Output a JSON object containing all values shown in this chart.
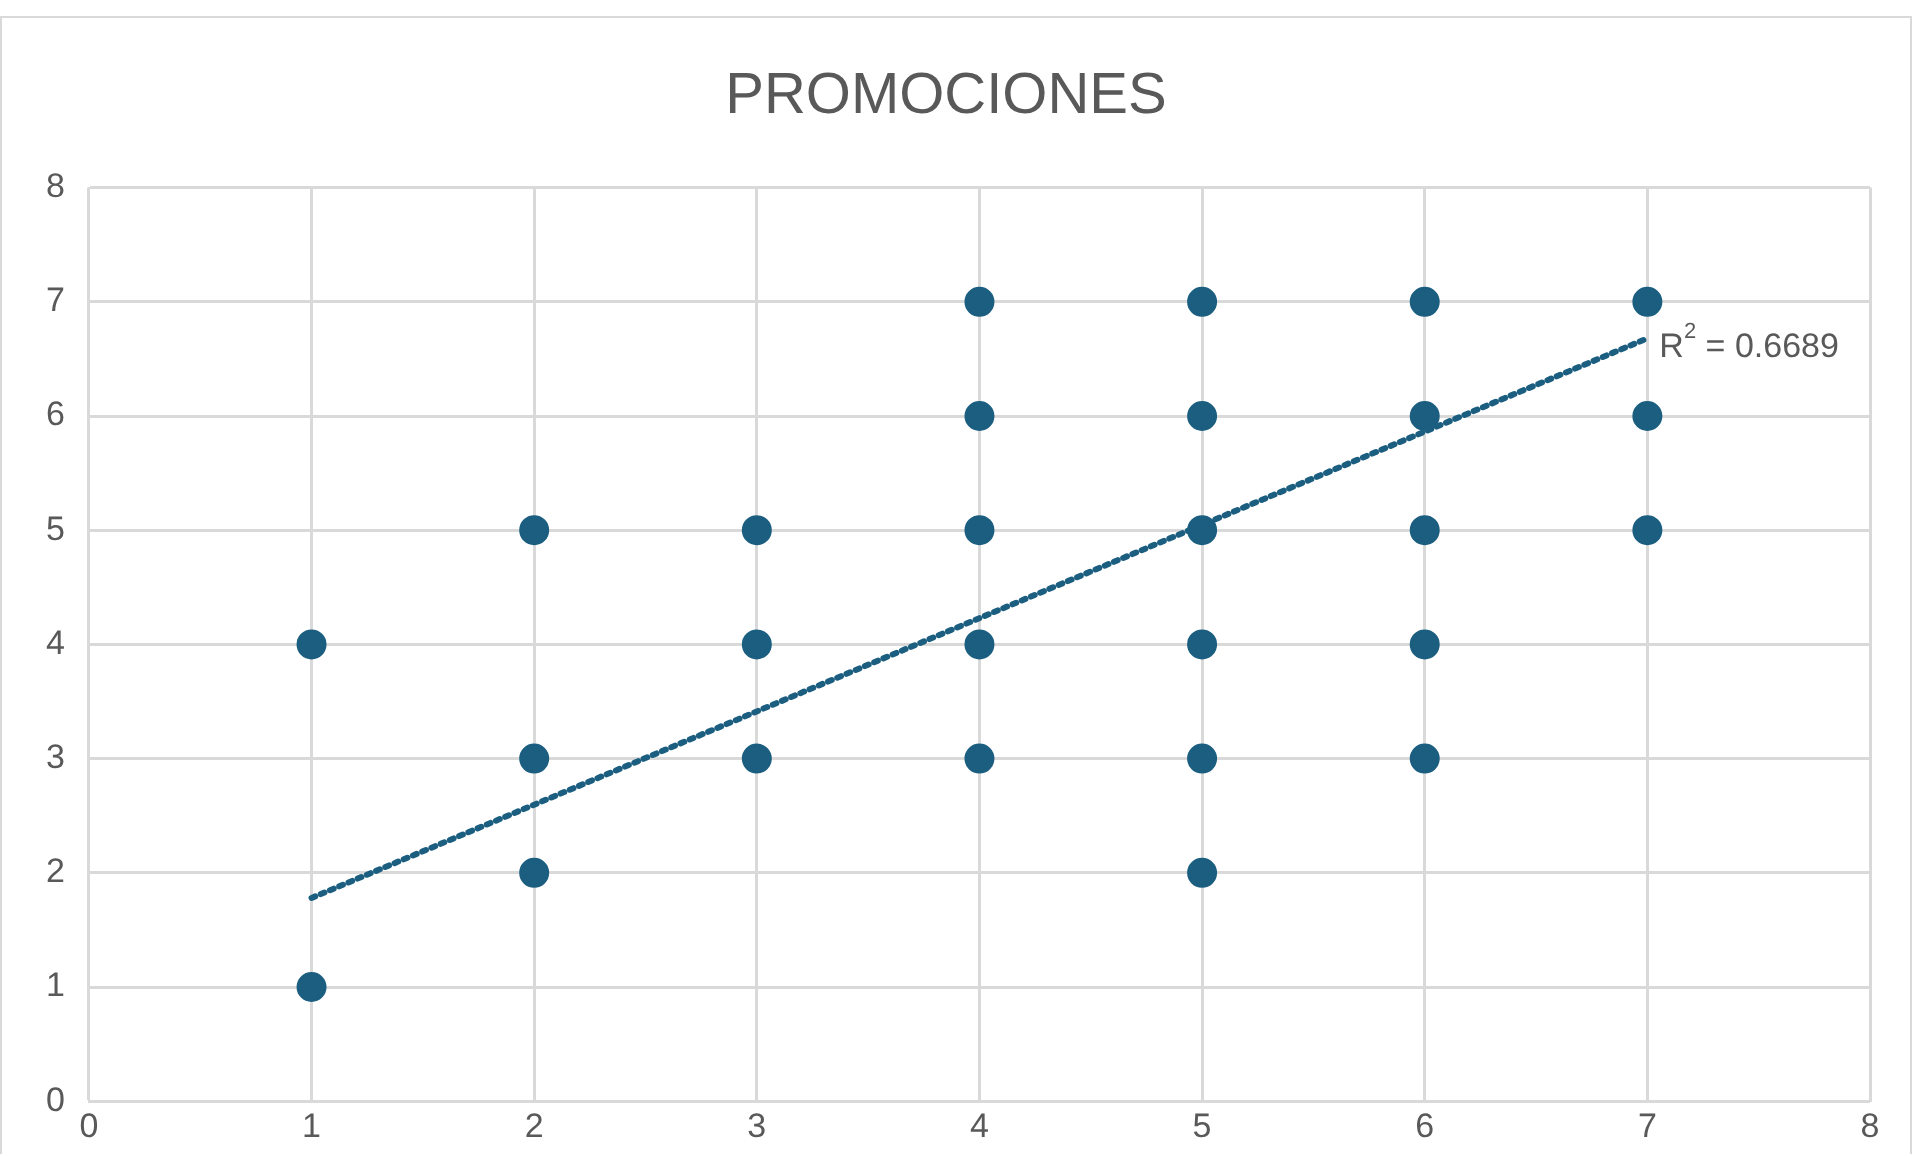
{
  "chart_data": {
    "type": "scatter",
    "title": "PROMOCIONES",
    "x": [
      1,
      1,
      2,
      2,
      2,
      3,
      3,
      3,
      4,
      4,
      4,
      4,
      4,
      5,
      5,
      5,
      5,
      5,
      5,
      6,
      6,
      6,
      6,
      6,
      7,
      7,
      7
    ],
    "series": [
      {
        "color": "#1b5e80",
        "marker": "circle",
        "values": [
          4,
          1,
          5,
          3,
          2,
          5,
          4,
          3,
          7,
          6,
          5,
          4,
          3,
          7,
          6,
          5,
          4,
          3,
          2,
          7,
          6,
          5,
          4,
          3,
          7,
          6,
          5
        ]
      },
      {
        "type": "line",
        "color": "#1b5e80",
        "line_style": "dotted",
        "marker": "none",
        "x": [
          1,
          7
        ],
        "values": [
          1.78,
          6.68
        ]
      }
    ],
    "annotations": [
      {
        "text": "R$^{2}$ = 0.6689",
        "x": 7,
        "y": 6.6
      }
    ],
    "xlim": [
      0,
      8
    ],
    "xticks": [
      0,
      1,
      2,
      3,
      4,
      5,
      6,
      7,
      8
    ],
    "ylim": [
      0,
      8
    ],
    "yticks": [
      0,
      1,
      2,
      3,
      4,
      5,
      6,
      7,
      8
    ],
    "grid": true,
    "legend": false
  }
}
